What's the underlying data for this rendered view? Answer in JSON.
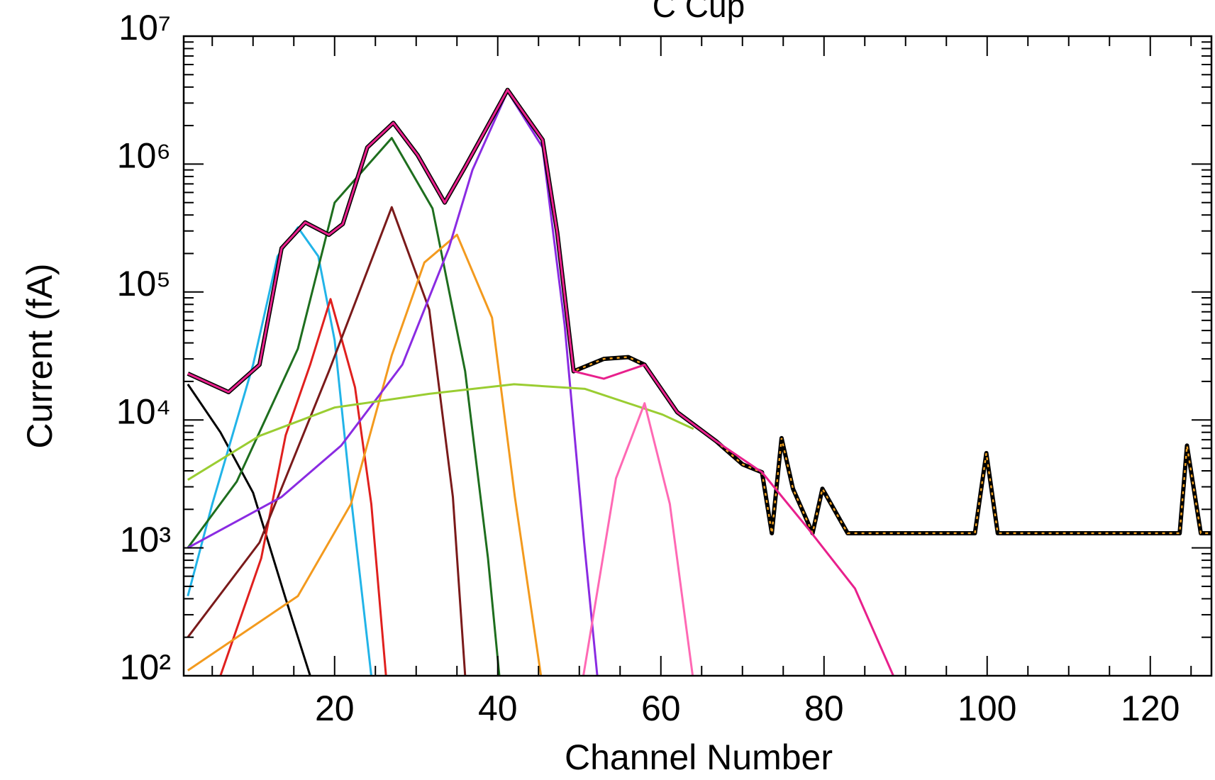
{
  "chart_data": {
    "type": "line",
    "title": "C Cup",
    "xlabel": "Channel Number",
    "ylabel": "Current (fA)",
    "xlim": [
      1.5,
      127.5
    ],
    "xticks": [
      20,
      40,
      60,
      80,
      100,
      120
    ],
    "xminorticks": [
      5,
      10,
      15,
      25,
      30,
      35,
      45,
      50,
      55,
      65,
      70,
      75,
      85,
      90,
      95,
      105,
      110,
      115,
      125
    ],
    "ylim": [
      100,
      10000000
    ],
    "log_y": true,
    "minor_ticks": true,
    "yticks": [
      {
        "value": 100,
        "label": "10²"
      },
      {
        "value": 1000,
        "label": "10³"
      },
      {
        "value": 10000,
        "label": "10⁴"
      },
      {
        "value": 100000,
        "label": "10⁵"
      },
      {
        "value": 1000000,
        "label": "10⁶"
      },
      {
        "value": 10000000,
        "label": "10⁷"
      }
    ],
    "series": [
      {
        "color": "#000000",
        "x": [
          2,
          6,
          10,
          14,
          17
        ],
        "values": [
          19000,
          8000,
          2700,
          400,
          100
        ]
      },
      {
        "color": "#22b4e8",
        "x": [
          2,
          5,
          10,
          13,
          15.5,
          18,
          20,
          22,
          24.5
        ],
        "values": [
          420,
          2200,
          27000,
          190000,
          320000,
          190000,
          42000,
          2500,
          100
        ]
      },
      {
        "color": "#e0201e",
        "x": [
          6,
          11,
          14,
          17,
          19.5,
          22.5,
          24.5,
          26.3
        ],
        "values": [
          100,
          830,
          7600,
          27000,
          88000,
          18000,
          2200,
          100
        ]
      },
      {
        "color": "#1e6e1e",
        "x": [
          2,
          8,
          15.5,
          20,
          27,
          32,
          36,
          38.8,
          40.2
        ],
        "values": [
          1000,
          3300,
          36000,
          500000,
          1600000,
          450000,
          24000,
          830,
          100
        ]
      },
      {
        "color": "#7a1a1a",
        "x": [
          2,
          10.8,
          19.3,
          27,
          31.6,
          34.5,
          36
        ],
        "values": [
          200,
          1100,
          24000,
          460000,
          73000,
          2500,
          100
        ]
      },
      {
        "color": "#f39a1e",
        "x": [
          2,
          15.5,
          22,
          27,
          31,
          35,
          39.3,
          42.1,
          45.3
        ],
        "values": [
          110,
          420,
          2200,
          32000,
          170000,
          280000,
          63000,
          2500,
          100
        ]
      },
      {
        "color": "#8a2be2",
        "x": [
          2,
          13.5,
          20.8,
          28.3,
          34,
          36.9,
          41.2,
          45.5,
          48.2,
          50.6,
          52.2
        ],
        "values": [
          1000,
          2500,
          6300,
          27000,
          220000,
          900000,
          3700000,
          1350000,
          55000,
          1100,
          100
        ]
      },
      {
        "color": "#9acd32",
        "x": [
          2,
          10.8,
          20,
          31.6,
          42,
          50.7,
          60.2,
          64
        ],
        "values": [
          3400,
          7500,
          12500,
          16000,
          19000,
          17500,
          11000,
          8500
        ]
      },
      {
        "color": "#ff69b4",
        "x": [
          50.5,
          54.5,
          58,
          61.1,
          63.9
        ],
        "values": [
          100,
          3500,
          13500,
          2200,
          100
        ]
      },
      {
        "color": "#000000",
        "dash_color": "#f0a020",
        "x": [
          2,
          7,
          10.8,
          13.5,
          16.4,
          19.3,
          21,
          24,
          27.2,
          30.2,
          33.5,
          36,
          41.2,
          45.5,
          47.3,
          49.3,
          53,
          56,
          58,
          62,
          66.8,
          70,
          72.4,
          73.6,
          74.8,
          76.2,
          78.6,
          79.8,
          82.9,
          86,
          98.5,
          99.9,
          101.3,
          123.6,
          124.5,
          126.2,
          128
        ],
        "values": [
          23000,
          16500,
          27000,
          220000,
          350000,
          280000,
          340000,
          1350000,
          2100000,
          1170000,
          500000,
          950000,
          3800000,
          1550000,
          290000,
          24000,
          30000,
          31000,
          27000,
          11500,
          6800,
          4500,
          3900,
          1300,
          7200,
          2900,
          1300,
          2900,
          1300,
          1300,
          1300,
          5500,
          1300,
          1300,
          6300,
          1300,
          1300
        ]
      },
      {
        "color": "#e8208c",
        "x": [
          2,
          7,
          10.8,
          13.5,
          16.4,
          19.3,
          21,
          24,
          27.2,
          30.2,
          33.5,
          36,
          41.2,
          45.5,
          47.3,
          49.3,
          53,
          58,
          62,
          66.8,
          72.4,
          78.1,
          83.8,
          88.5
        ],
        "values": [
          23000,
          16500,
          27000,
          220000,
          350000,
          280000,
          340000,
          1350000,
          2100000,
          1170000,
          500000,
          950000,
          3800000,
          1550000,
          290000,
          24000,
          21000,
          27000,
          11500,
          6800,
          3900,
          1400,
          480,
          100
        ]
      }
    ]
  }
}
